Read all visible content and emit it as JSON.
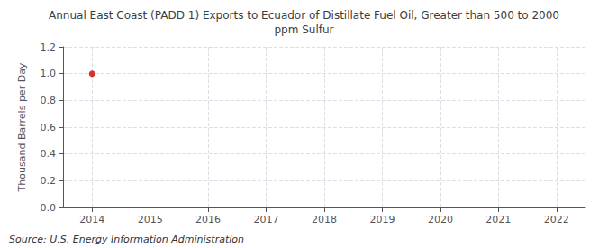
{
  "chart_data": {
    "type": "scatter",
    "title": "Annual East Coast (PADD 1) Exports to Ecuador of Distillate Fuel Oil, Greater than 500 to 2000\nppm Sulfur",
    "ylabel": "Thousand Barrels per Day",
    "annotations": [
      "Source: U.S. Energy Information Administration"
    ],
    "x": [
      2014
    ],
    "values": [
      1.0
    ],
    "color": "#cc0000",
    "marker": "circle",
    "xlim": [
      2013.5,
      2022.5
    ],
    "xticks": [
      2014,
      2015,
      2016,
      2017,
      2018,
      2019,
      2020,
      2021,
      2022
    ],
    "ylim": [
      0.0,
      1.2
    ],
    "yticks": [
      {
        "value": 0.0,
        "label": "0.0"
      },
      0.2,
      0.4,
      0.6,
      0.8,
      {
        "value": 1.0,
        "label": "1.0"
      },
      1.2
    ],
    "grid": true
  }
}
